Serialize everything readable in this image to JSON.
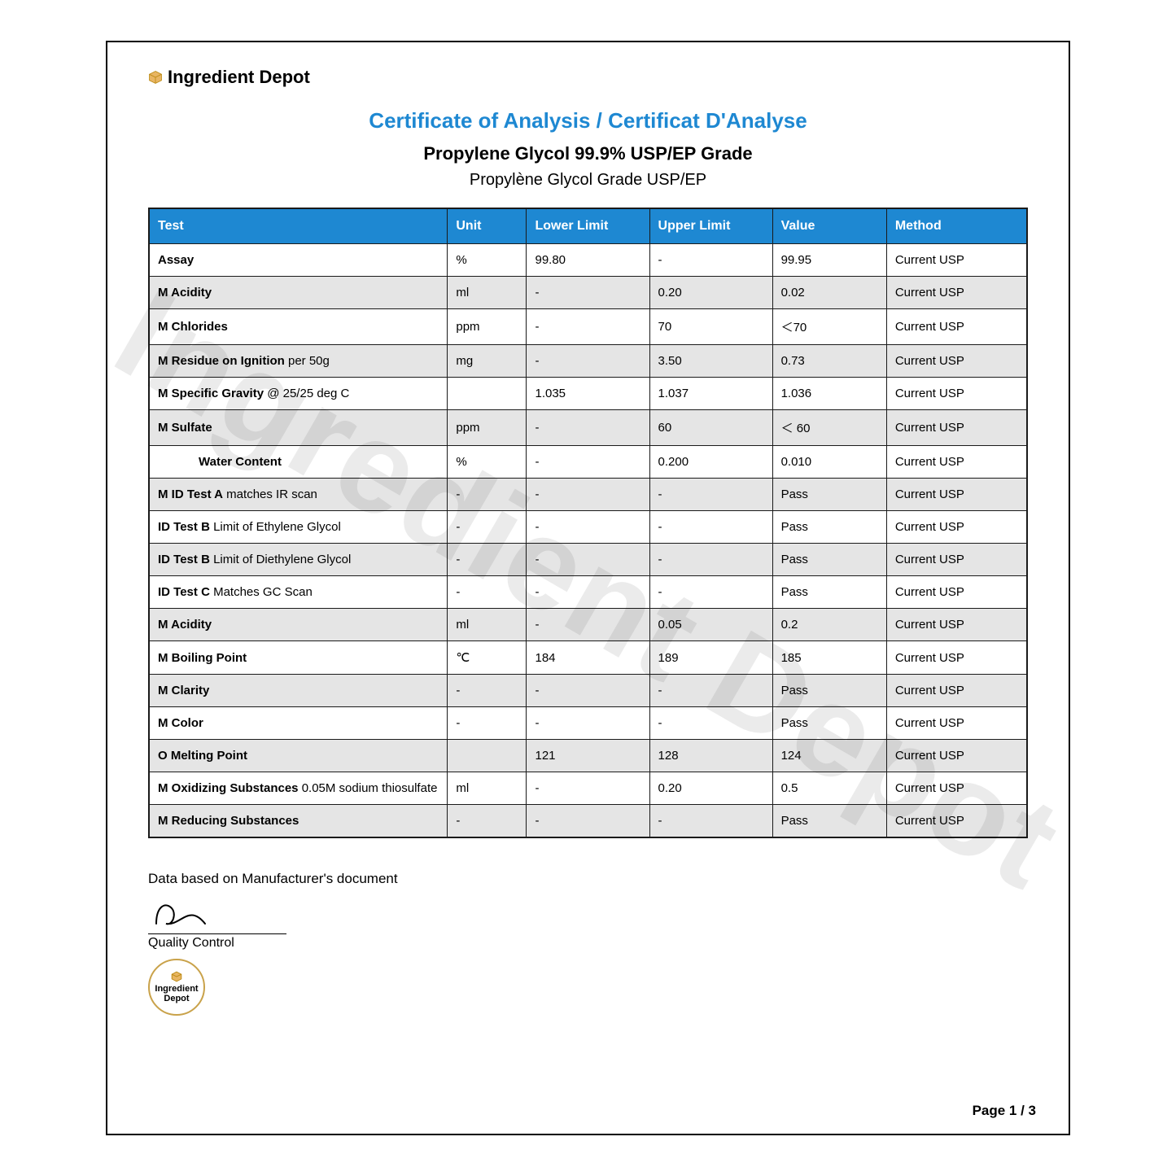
{
  "brand": "Ingredient Depot",
  "watermark_text": "Ingredient Depot",
  "cert_title": "Certificate of Analysis / Certificat D'Analyse",
  "product_title": "Propylene Glycol 99.9% USP/EP Grade",
  "product_sub": "Propylène Glycol Grade USP/EP",
  "columns": [
    "Test",
    "Unit",
    "Lower Limit",
    "Upper Limit",
    "Value",
    "Method"
  ],
  "rows": [
    {
      "test_main": "Assay",
      "test_sub": "",
      "indent": false,
      "unit": "%",
      "lower": "99.80",
      "upper": "-",
      "value": "99.95",
      "method": "Current USP"
    },
    {
      "test_main": "M Acidity",
      "test_sub": "",
      "indent": false,
      "unit": "ml",
      "lower": "-",
      "upper": "0.20",
      "value": "0.02",
      "method": "Current USP"
    },
    {
      "test_main": "M Chlorides",
      "test_sub": "",
      "indent": false,
      "unit": "ppm",
      "lower": "-",
      "upper": "70",
      "value": "＜70",
      "method": "Current USP"
    },
    {
      "test_main": "M Residue on Ignition",
      "test_sub": " per 50g",
      "indent": false,
      "unit": "mg",
      "lower": "-",
      "upper": "3.50",
      "value": "0.73",
      "method": "Current USP"
    },
    {
      "test_main": "M Specific Gravity",
      "test_sub": " @ 25/25 deg C",
      "indent": false,
      "unit": "",
      "lower": "1.035",
      "upper": "1.037",
      "value": "1.036",
      "method": "Current USP"
    },
    {
      "test_main": "M Sulfate",
      "test_sub": "",
      "indent": false,
      "unit": "ppm",
      "lower": "-",
      "upper": "60",
      "value": "＜ 60",
      "method": "Current USP"
    },
    {
      "test_main": "Water Content",
      "test_sub": "",
      "indent": true,
      "unit": "%",
      "lower": "-",
      "upper": "0.200",
      "value": "0.010",
      "method": "Current USP"
    },
    {
      "test_main": "M ID Test A",
      "test_sub": " matches IR scan",
      "indent": false,
      "unit": "-",
      "lower": "-",
      "upper": "-",
      "value": "Pass",
      "method": "Current USP"
    },
    {
      "test_main": "ID Test B",
      "test_sub": " Limit of Ethylene Glycol",
      "indent": false,
      "unit": "-",
      "lower": "-",
      "upper": "-",
      "value": "Pass",
      "method": "Current USP"
    },
    {
      "test_main": "ID Test B",
      "test_sub": " Limit of Diethylene Glycol",
      "indent": false,
      "unit": "-",
      "lower": "-",
      "upper": "-",
      "value": "Pass",
      "method": "Current USP"
    },
    {
      "test_main": "ID Test C",
      "test_sub": " Matches GC Scan",
      "indent": false,
      "unit": "-",
      "lower": "-",
      "upper": "-",
      "value": "Pass",
      "method": "Current USP"
    },
    {
      "test_main": "M Acidity",
      "test_sub": "",
      "indent": false,
      "unit": "ml",
      "lower": "-",
      "upper": "0.05",
      "value": "0.2",
      "method": "Current USP"
    },
    {
      "test_main": "M Boiling Point",
      "test_sub": "",
      "indent": false,
      "unit": "℃",
      "lower": "184",
      "upper": "189",
      "value": "185",
      "method": "Current USP"
    },
    {
      "test_main": "M Clarity",
      "test_sub": "",
      "indent": false,
      "unit": "-",
      "lower": "-",
      "upper": "-",
      "value": "Pass",
      "method": "Current USP"
    },
    {
      "test_main": "M Color",
      "test_sub": "",
      "indent": false,
      "unit": "-",
      "lower": "-",
      "upper": "-",
      "value": "Pass",
      "method": "Current USP"
    },
    {
      "test_main": "O Melting Point",
      "test_sub": "",
      "indent": false,
      "unit": "",
      "lower": "121",
      "upper": "128",
      "value": "124",
      "method": "Current USP"
    },
    {
      "test_main": "M Oxidizing Substances",
      "test_sub": " 0.05M sodium thiosulfate",
      "indent": false,
      "unit": "ml",
      "lower": "-",
      "upper": "0.20",
      "value": "0.5",
      "method": "Current USP"
    },
    {
      "test_main": "M Reducing Substances",
      "test_sub": "",
      "indent": false,
      "unit": "-",
      "lower": "-",
      "upper": "-",
      "value": "Pass",
      "method": "Current USP"
    }
  ],
  "footer_note": "Data based on Manufacturer's document",
  "qc_label": "Quality Control",
  "stamp_line1": "Ingredient",
  "stamp_line2": "Depot",
  "page_num": "Page 1 / 3",
  "colors": {
    "header_bg": "#1e88d2",
    "title_color": "#1e88d2",
    "row_odd": "#ffffff",
    "row_even": "#e5e5e5",
    "border": "#1a1a1a",
    "stamp_border": "#c9a24a"
  }
}
